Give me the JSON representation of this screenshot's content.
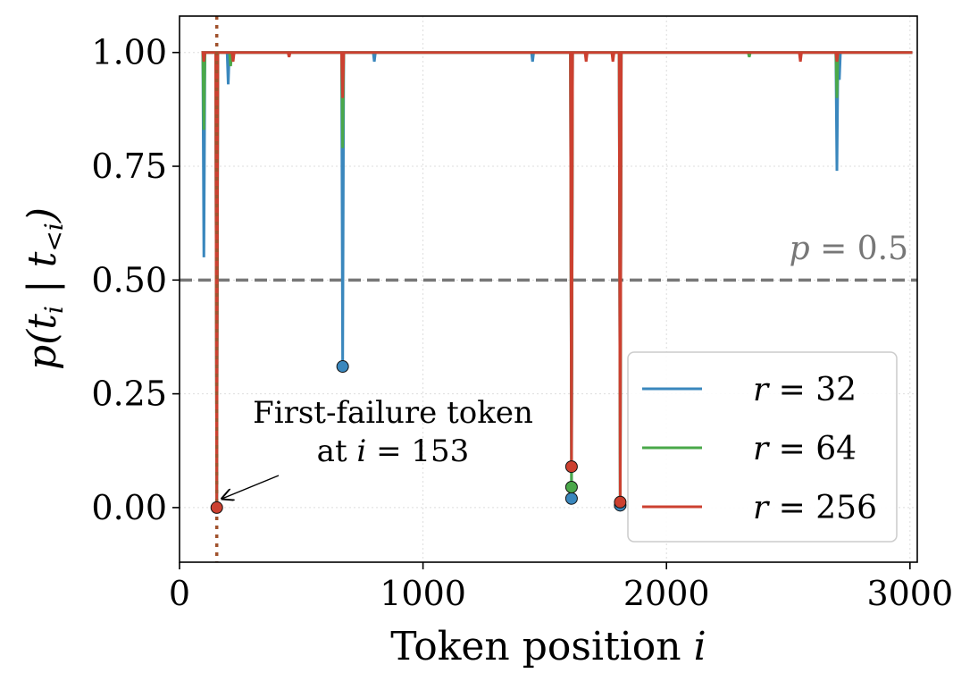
{
  "chart_data": {
    "type": "line",
    "title": "",
    "xlabel": "Token position i",
    "xlabel_text": "Token position ",
    "xlabel_var": "i",
    "ylabel": "p(t_i | t_<i)",
    "ylabel_parts": [
      "p(t",
      "i",
      " | t",
      "<i",
      ")"
    ],
    "xlim": [
      0,
      3030
    ],
    "ylim": [
      -0.12,
      1.08
    ],
    "xticks": [
      0,
      1000,
      2000,
      3000
    ],
    "xtick_labels": [
      "0",
      "1000",
      "2000",
      "3000"
    ],
    "yticks": [
      0.0,
      0.25,
      0.5,
      0.75,
      1.0
    ],
    "ytick_labels": [
      "0.00",
      "0.25",
      "0.50",
      "0.75",
      "1.00"
    ],
    "grid": true,
    "legend_position": "bottom-right",
    "series": [
      {
        "name": "r = 32",
        "name_var": "r",
        "name_value": "32",
        "color": "#3a87bd",
        "spikes": [
          [
            100,
            0.55
          ],
          [
            153,
            0.0
          ],
          [
            200,
            0.93
          ],
          [
            670,
            0.31
          ],
          [
            800,
            0.98
          ],
          [
            1450,
            0.98
          ],
          [
            1610,
            0.02
          ],
          [
            1810,
            0.005
          ],
          [
            2700,
            0.74
          ],
          [
            2710,
            0.94
          ]
        ],
        "markers": [
          [
            670,
            0.31
          ],
          [
            1610,
            0.02
          ],
          [
            1810,
            0.005
          ]
        ]
      },
      {
        "name": "r = 64",
        "name_var": "r",
        "name_value": "64",
        "color": "#4aa84a",
        "spikes": [
          [
            100,
            0.83
          ],
          [
            153,
            0.0
          ],
          [
            210,
            0.97
          ],
          [
            670,
            0.79
          ],
          [
            1610,
            0.045
          ],
          [
            1810,
            0.008
          ],
          [
            2340,
            0.99
          ],
          [
            2700,
            0.9
          ]
        ],
        "markers": [
          [
            1610,
            0.045
          ]
        ]
      },
      {
        "name": "r = 256",
        "name_var": "r",
        "name_value": "256",
        "color": "#cc4030",
        "spikes": [
          [
            100,
            0.98
          ],
          [
            153,
            0.0
          ],
          [
            220,
            0.98
          ],
          [
            450,
            0.99
          ],
          [
            670,
            0.9
          ],
          [
            1610,
            0.09
          ],
          [
            1670,
            0.98
          ],
          [
            1780,
            0.98
          ],
          [
            1810,
            0.012
          ],
          [
            2550,
            0.98
          ],
          [
            2700,
            0.98
          ]
        ],
        "markers": [
          [
            153,
            0.0
          ],
          [
            1610,
            0.09
          ],
          [
            1810,
            0.012
          ]
        ]
      }
    ],
    "reference_line": {
      "y": 0.5,
      "label": "p = 0.5",
      "label_var": "p",
      "label_value": "0.5",
      "color": "#777777"
    },
    "vertical_marker": {
      "x": 153,
      "color": "#a0522d"
    },
    "annotation": {
      "line1": "First-failure token",
      "line2_prefix": "at ",
      "line2_var": "i",
      "line2_value": "153",
      "target": [
        153,
        0.0
      ]
    }
  }
}
